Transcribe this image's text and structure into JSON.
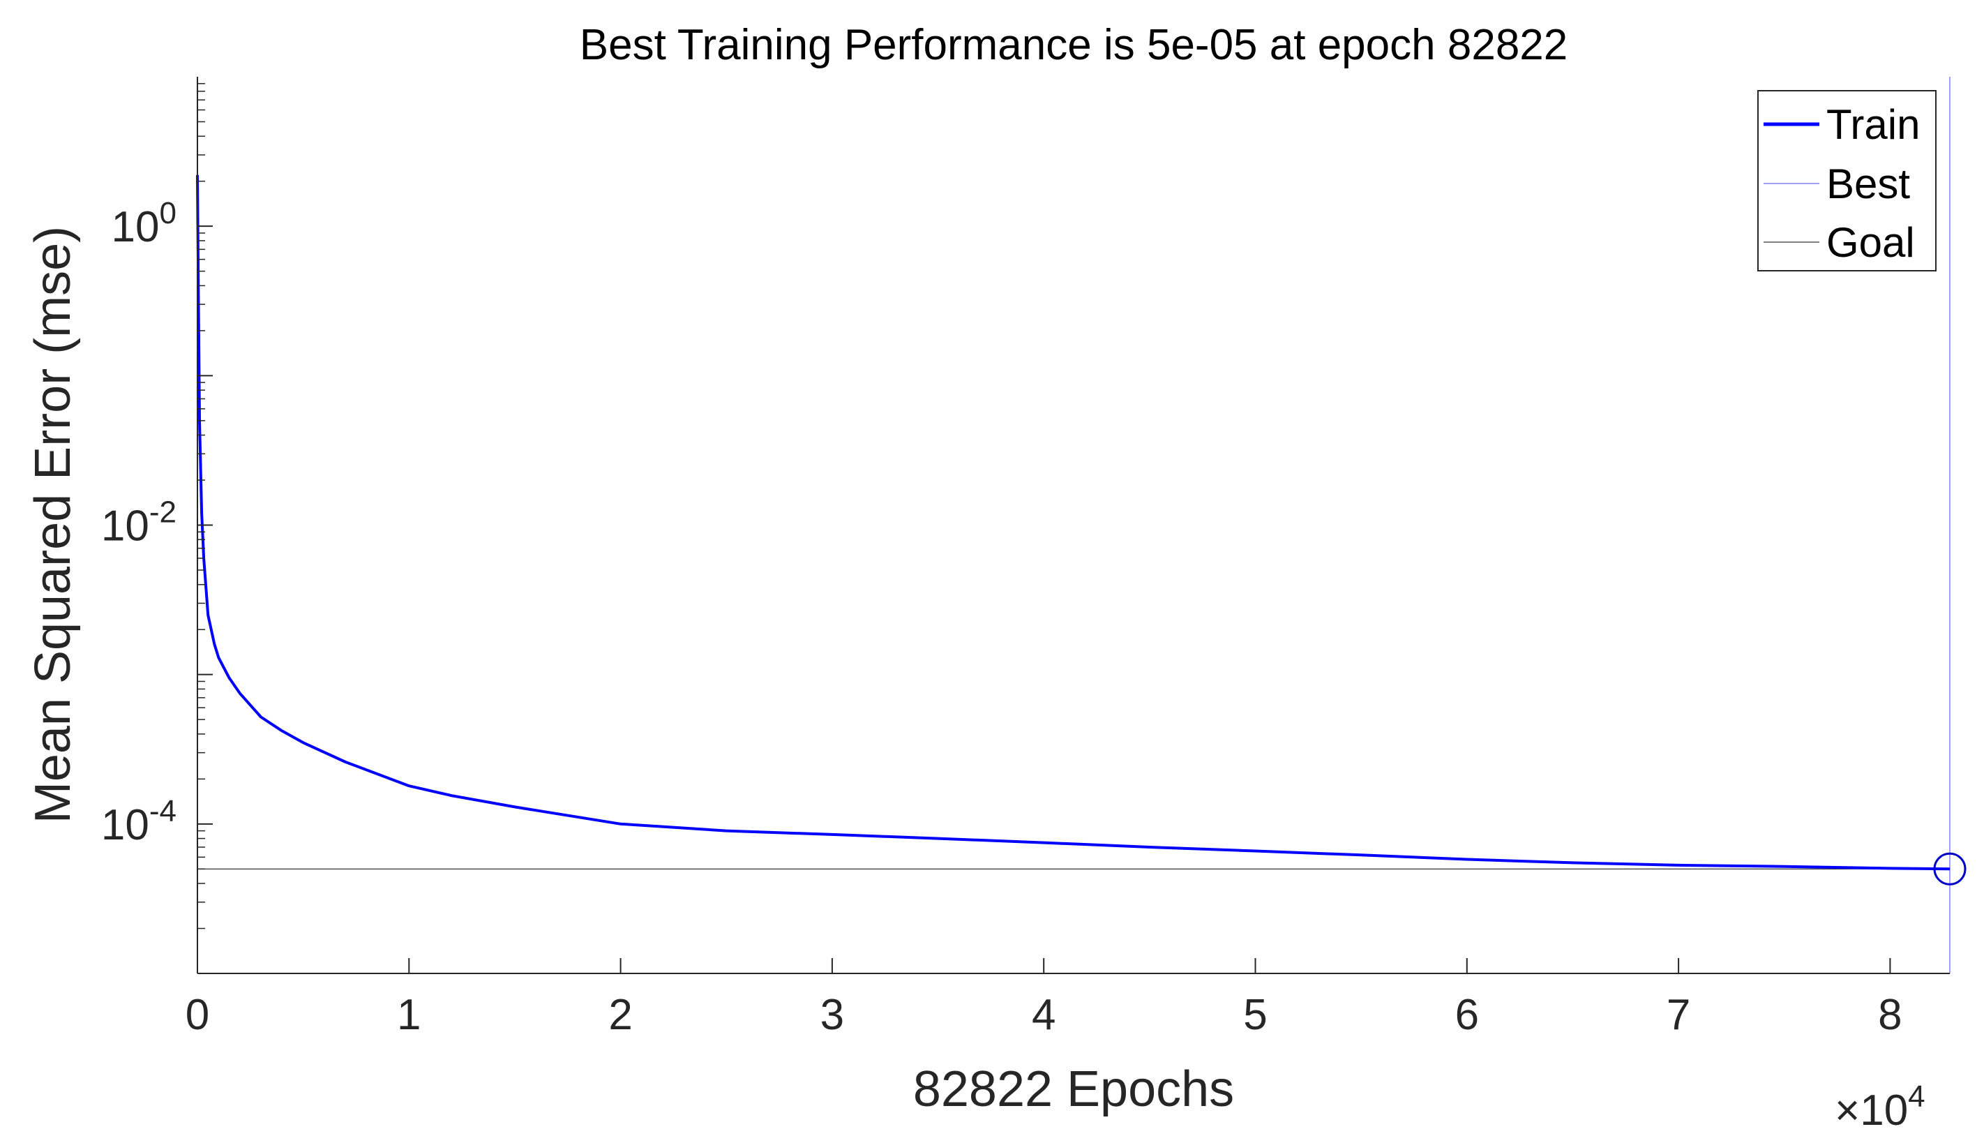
{
  "chart_data": {
    "type": "line",
    "title": "Best Training Performance is 5e-05 at epoch 82822",
    "xlabel": "82822 Epochs",
    "ylabel": "Mean Squared Error  (mse)",
    "x_multiplier_label": {
      "base": "×10",
      "exponent": "4"
    },
    "xlim": [
      0,
      82822
    ],
    "ylim": [
      1e-05,
      10
    ],
    "yscale": "log",
    "x_ticks": [
      0,
      10000,
      20000,
      30000,
      40000,
      50000,
      60000,
      70000,
      80000
    ],
    "x_tick_labels": [
      "0",
      "1",
      "2",
      "3",
      "4",
      "5",
      "6",
      "7",
      "8"
    ],
    "y_ticks": [
      {
        "value": 1,
        "base": "10",
        "exponent": "0"
      },
      {
        "value": 0.01,
        "base": "10",
        "exponent": "-2"
      },
      {
        "value": 0.0001,
        "base": "10",
        "exponent": "-4"
      }
    ],
    "legend": {
      "position": "top-right",
      "entries": [
        "Train",
        "Best",
        "Goal"
      ]
    },
    "series": [
      {
        "name": "Train",
        "color": "#0000ff",
        "x": [
          0,
          50,
          100,
          200,
          300,
          500,
          800,
          1000,
          1500,
          2000,
          3000,
          4000,
          5000,
          7000,
          10000,
          12000,
          15000,
          20000,
          25000,
          30000,
          35000,
          40000,
          45000,
          50000,
          55000,
          60000,
          65000,
          70000,
          75000,
          80000,
          82822
        ],
        "y": [
          2.2,
          0.3,
          0.05,
          0.012,
          0.006,
          0.0025,
          0.0016,
          0.0013,
          0.00095,
          0.00075,
          0.00052,
          0.00042,
          0.00035,
          0.00026,
          0.00018,
          0.000155,
          0.00013,
          0.0001,
          9e-05,
          8.5e-05,
          8e-05,
          7.5e-05,
          7e-05,
          6.6e-05,
          6.2e-05,
          5.8e-05,
          5.5e-05,
          5.3e-05,
          5.2e-05,
          5.05e-05,
          5e-05
        ]
      },
      {
        "name": "Best",
        "color": "#0000ff",
        "best_epoch": 82822,
        "best_value": 5e-05
      },
      {
        "name": "Goal",
        "color": "#000000",
        "value": 5e-05
      }
    ],
    "grid": false
  }
}
